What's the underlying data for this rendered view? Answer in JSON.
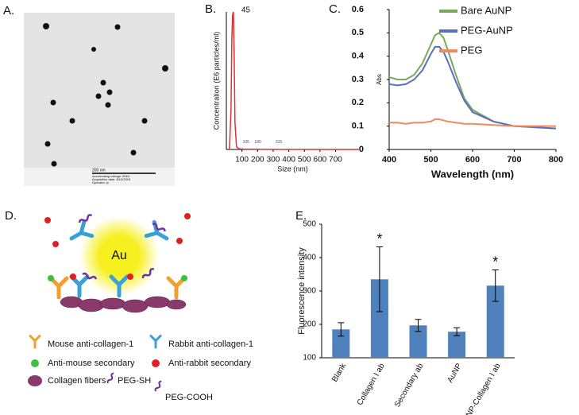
{
  "panel_labels": {
    "a": "A.",
    "b": "B.",
    "c": "C.",
    "d": "D.",
    "e": "E."
  },
  "tem_image": {
    "scale_bar": "200 nm",
    "info": [
      "Accelerating voltage: 80kV",
      "Acquisition date: 8/13/2015",
      "Operator: jx"
    ]
  },
  "chart_data": [
    {
      "type": "line",
      "ylabel": "Concentration (E6 particles/ml)",
      "xlabel": "Size (nm)",
      "x": [
        20,
        30,
        35,
        40,
        45,
        50,
        55,
        65,
        80,
        105,
        180,
        315,
        850
      ],
      "series": [
        {
          "color": "#e03030",
          "values": [
            0,
            30,
            80,
            98,
            100,
            70,
            20,
            2,
            0.5,
            0.3,
            0.2,
            0.1,
            0
          ]
        }
      ],
      "xlim": [
        0,
        850
      ],
      "ylim": [
        0,
        100
      ],
      "xticks": [
        100,
        200,
        300,
        400,
        500,
        600,
        700
      ],
      "annotations": [
        {
          "text": "45",
          "x": 45,
          "y": 100
        },
        {
          "text": "105",
          "x": 105,
          "y": 2
        },
        {
          "text": "180",
          "x": 180,
          "y": 2
        },
        {
          "text": "315",
          "x": 315,
          "y": 2
        }
      ]
    },
    {
      "type": "line",
      "ylabel": "Abs",
      "xlabel": "Wavelength (nm)",
      "x": [
        400,
        420,
        440,
        460,
        480,
        500,
        510,
        520,
        530,
        540,
        560,
        580,
        600,
        650,
        700,
        750,
        800
      ],
      "series": [
        {
          "name": "Bare AuNP",
          "color": "#7aa85a",
          "values": [
            0.31,
            0.3,
            0.3,
            0.32,
            0.37,
            0.45,
            0.49,
            0.5,
            0.48,
            0.43,
            0.32,
            0.22,
            0.17,
            0.12,
            0.1,
            0.095,
            0.09
          ]
        },
        {
          "name": "PEG-AuNP",
          "color": "#5a6fbf",
          "values": [
            0.28,
            0.275,
            0.28,
            0.3,
            0.34,
            0.41,
            0.44,
            0.44,
            0.42,
            0.38,
            0.29,
            0.21,
            0.16,
            0.12,
            0.1,
            0.095,
            0.09
          ]
        },
        {
          "name": "PEG",
          "color": "#f08a5a",
          "values": [
            0.115,
            0.115,
            0.11,
            0.115,
            0.115,
            0.12,
            0.13,
            0.13,
            0.125,
            0.12,
            0.115,
            0.11,
            0.11,
            0.105,
            0.1,
            0.1,
            0.1
          ]
        }
      ],
      "xlim": [
        400,
        800
      ],
      "ylim": [
        0,
        0.6
      ],
      "xticks": [
        400,
        500,
        600,
        700,
        800
      ],
      "yticks": [
        0,
        0.1,
        0.2,
        0.3,
        0.4,
        0.5,
        0.6
      ],
      "legend": "top-right"
    },
    {
      "type": "bar",
      "ylabel": "Fluorescence intensity",
      "categories": [
        "Blank",
        "Collagen I ab",
        "Secondary ab",
        "AuNP",
        "AuNP-Collagen I ab"
      ],
      "values": [
        185,
        335,
        197,
        178,
        316
      ],
      "errors": [
        20,
        97,
        18,
        12,
        47
      ],
      "significance": [
        null,
        "*",
        null,
        null,
        "*"
      ],
      "color": "#4f81bd",
      "ylim": [
        100,
        500
      ],
      "yticks": [
        100,
        200,
        300,
        400,
        500
      ]
    }
  ],
  "schematic": {
    "center": "Au",
    "legend": [
      "Mouse anti-collagen-1",
      "Rabbit anti-collagen-1",
      "Anti-mouse secondary",
      "Anti-rabbit secondary",
      "Collagen fibers",
      "PEG-SH",
      "PEG-COOH"
    ]
  }
}
